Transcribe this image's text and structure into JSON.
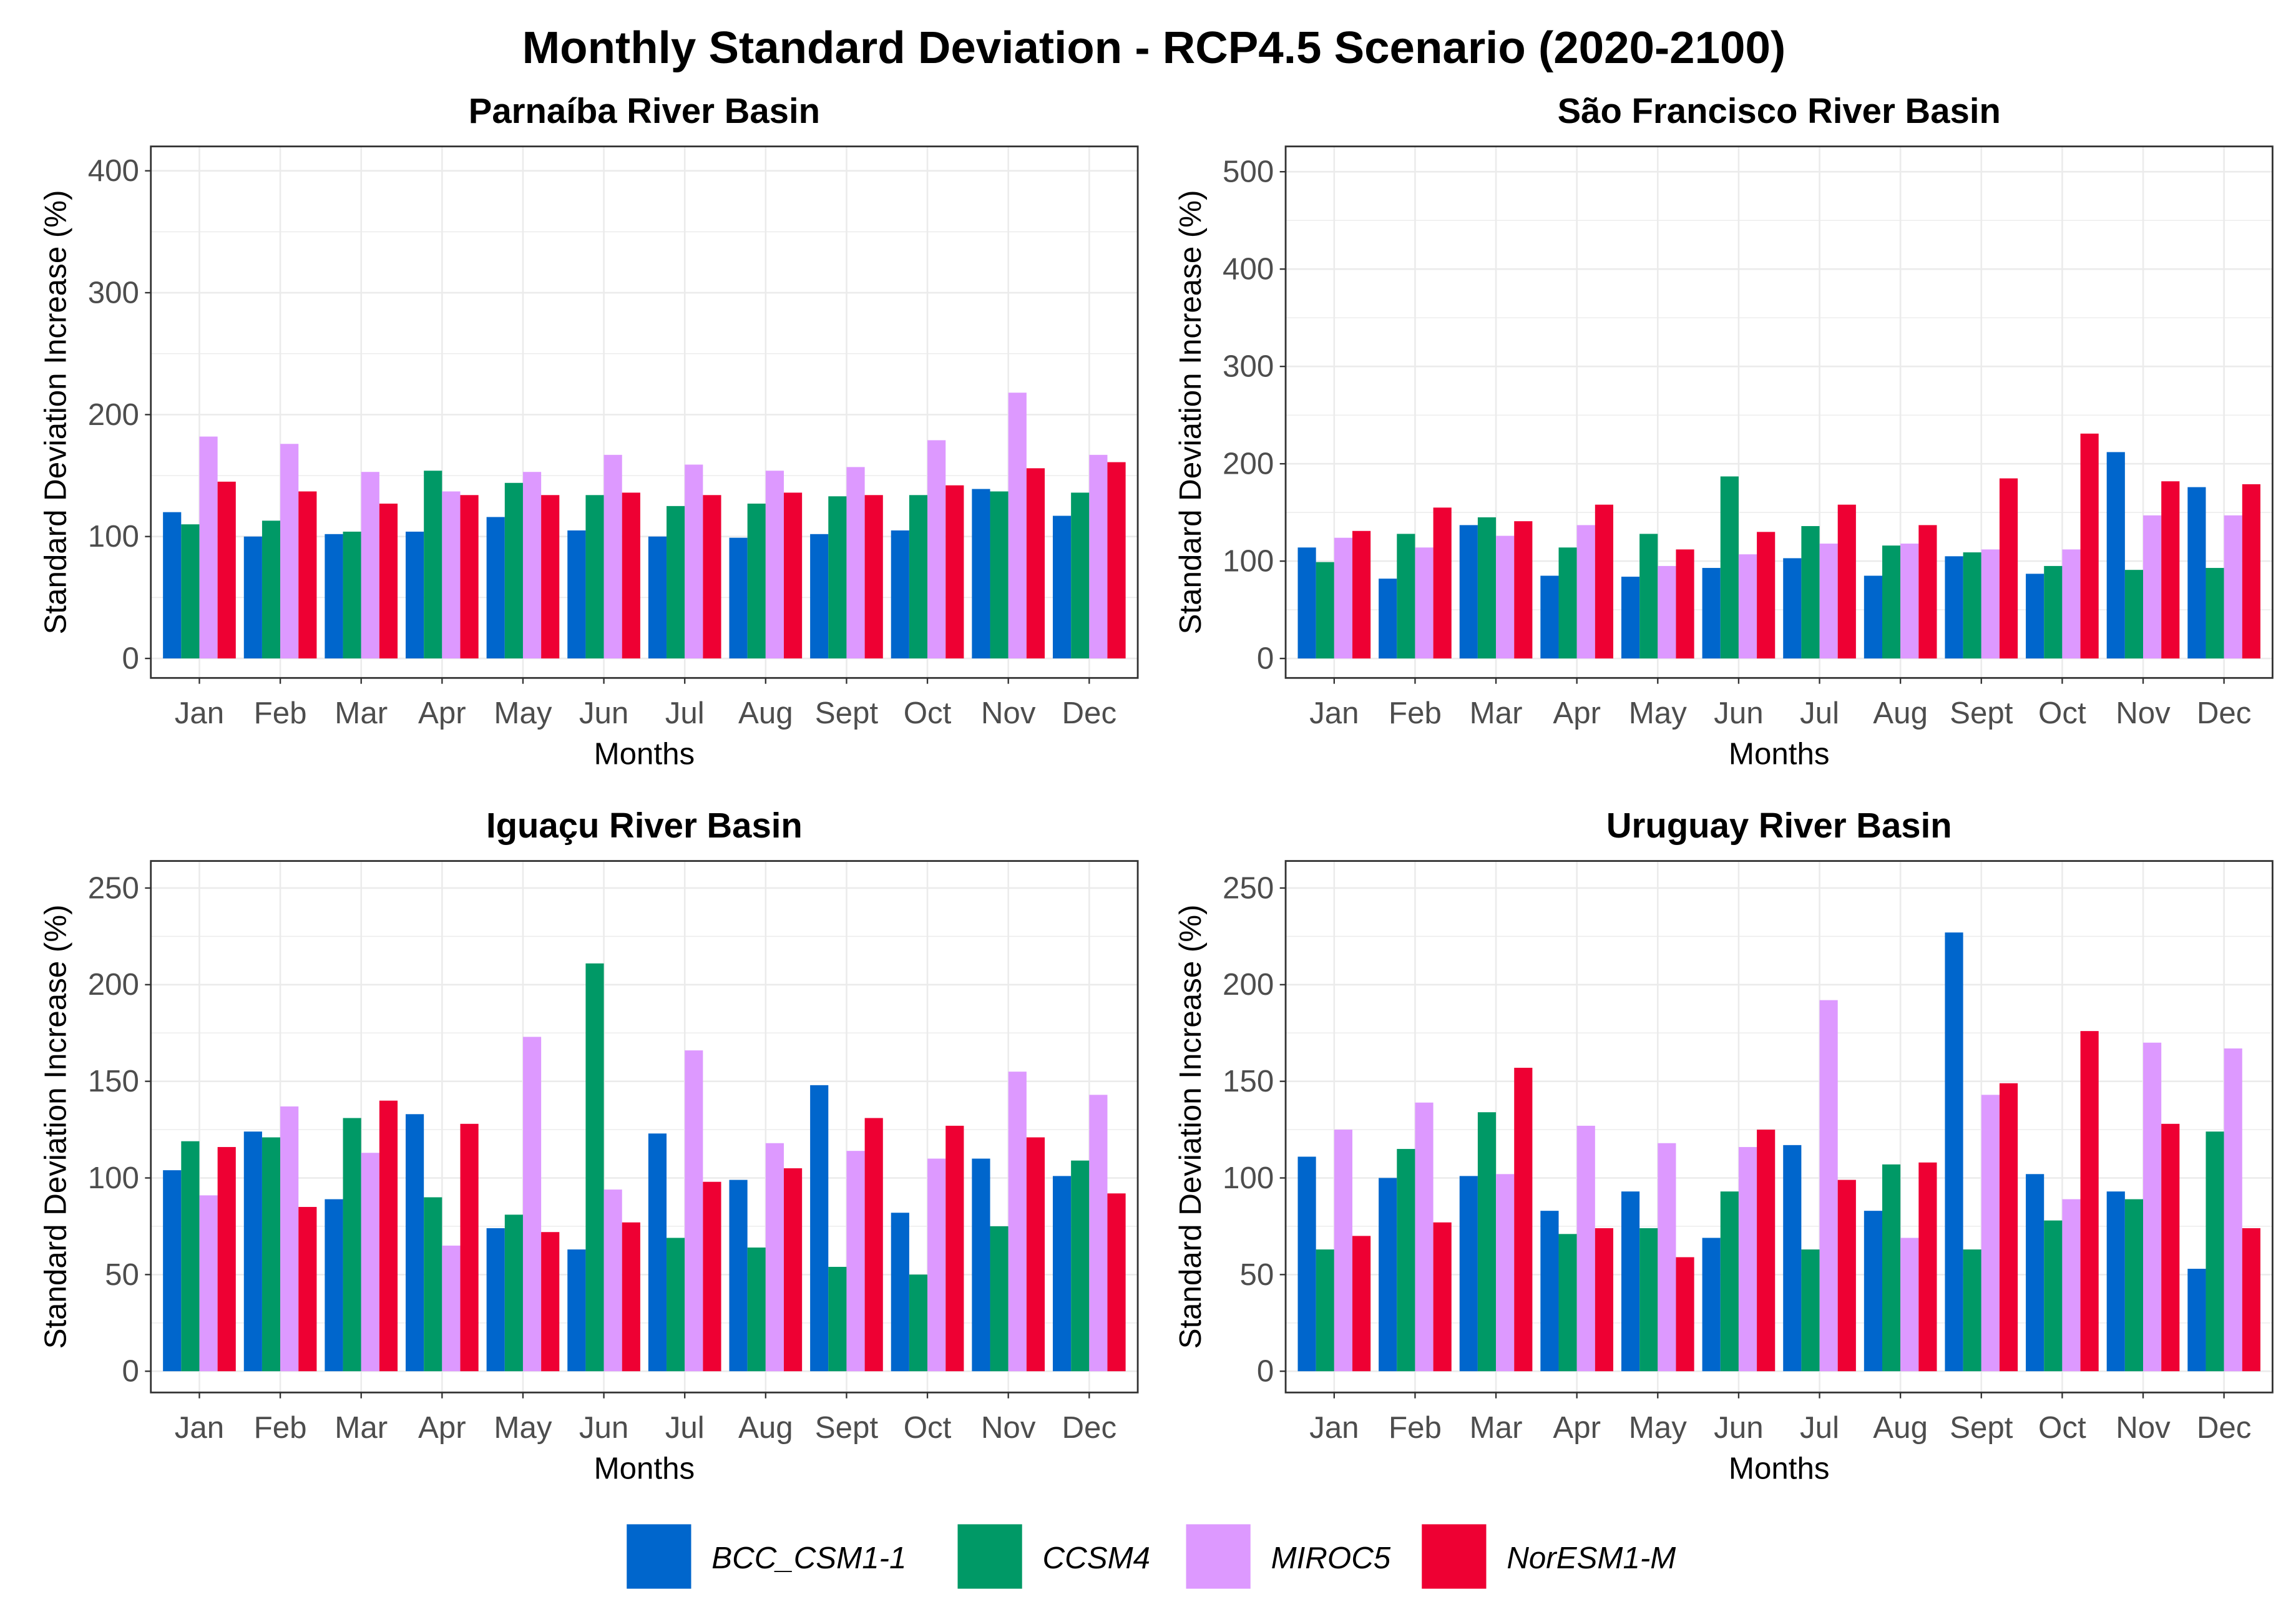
{
  "title": "Monthly Standard Deviation - RCP4.5 Scenario (2020-2100)",
  "legend": {
    "placement": "bottom",
    "entries": [
      {
        "name": "BCC_CSM1-1",
        "color": "#0066cc"
      },
      {
        "name": "CCSM4",
        "color": "#009966"
      },
      {
        "name": "MIROC5",
        "color": "#dd99ff"
      },
      {
        "name": "NorESM1-M",
        "color": "#ee0033"
      }
    ]
  },
  "chart_data": [
    {
      "type": "bar",
      "title": "Parnaíba River Basin",
      "xlabel": "Months",
      "ylabel": "Standard Deviation Increase (%)",
      "categories": [
        "Jan",
        "Feb",
        "Mar",
        "Apr",
        "May",
        "Jun",
        "Jul",
        "Aug",
        "Sept",
        "Oct",
        "Nov",
        "Dec"
      ],
      "ylim": [
        -16,
        420
      ],
      "yticks": [
        "0",
        "100",
        "200",
        "300",
        "400"
      ],
      "grid": true,
      "series": [
        {
          "name": "BCC_CSM1-1",
          "values": [
            120,
            100,
            102,
            104,
            116,
            105,
            100,
            99,
            102,
            105,
            139,
            117
          ]
        },
        {
          "name": "CCSM4",
          "values": [
            110,
            113,
            104,
            154,
            144,
            134,
            125,
            127,
            133,
            134,
            137,
            136
          ]
        },
        {
          "name": "MIROC5",
          "values": [
            182,
            176,
            153,
            137,
            153,
            167,
            159,
            154,
            157,
            179,
            218,
            167
          ]
        },
        {
          "name": "NorESM1-M",
          "values": [
            145,
            137,
            127,
            134,
            134,
            136,
            134,
            136,
            134,
            142,
            156,
            161
          ]
        }
      ]
    },
    {
      "type": "bar",
      "title": "São Francisco River Basin",
      "xlabel": "Months",
      "ylabel": "Standard Deviation Increase (%)",
      "categories": [
        "Jan",
        "Feb",
        "Mar",
        "Apr",
        "May",
        "Jun",
        "Jul",
        "Aug",
        "Sept",
        "Oct",
        "Nov",
        "Dec"
      ],
      "ylim": [
        -20,
        526
      ],
      "yticks": [
        "0",
        "100",
        "200",
        "300",
        "400",
        "500"
      ],
      "grid": true,
      "series": [
        {
          "name": "BCC_CSM1-1",
          "values": [
            114,
            82,
            137,
            85,
            84,
            93,
            103,
            85,
            105,
            87,
            212,
            176
          ]
        },
        {
          "name": "CCSM4",
          "values": [
            99,
            128,
            145,
            114,
            128,
            187,
            136,
            116,
            109,
            95,
            91,
            93
          ]
        },
        {
          "name": "MIROC5",
          "values": [
            124,
            114,
            126,
            137,
            95,
            107,
            118,
            118,
            112,
            112,
            147,
            147
          ]
        },
        {
          "name": "NorESM1-M",
          "values": [
            131,
            155,
            141,
            158,
            112,
            130,
            158,
            137,
            185,
            231,
            182,
            179
          ]
        }
      ]
    },
    {
      "type": "bar",
      "title": "Iguaçu River Basin",
      "xlabel": "Months",
      "ylabel": "Standard Deviation Increase (%)",
      "categories": [
        "Jan",
        "Feb",
        "Mar",
        "Apr",
        "May",
        "Jun",
        "Jul",
        "Aug",
        "Sept",
        "Oct",
        "Nov",
        "Dec"
      ],
      "ylim": [
        -11,
        264
      ],
      "yticks": [
        "0",
        "50",
        "100",
        "150",
        "200",
        "250"
      ],
      "grid": true,
      "series": [
        {
          "name": "BCC_CSM1-1",
          "values": [
            104,
            124,
            89,
            133,
            74,
            63,
            123,
            99,
            148,
            82,
            110,
            101
          ]
        },
        {
          "name": "CCSM4",
          "values": [
            119,
            121,
            131,
            90,
            81,
            211,
            69,
            64,
            54,
            50,
            75,
            109
          ]
        },
        {
          "name": "MIROC5",
          "values": [
            91,
            137,
            113,
            65,
            173,
            94,
            166,
            118,
            114,
            110,
            155,
            143
          ]
        },
        {
          "name": "NorESM1-M",
          "values": [
            116,
            85,
            140,
            128,
            72,
            77,
            98,
            105,
            131,
            127,
            121,
            92
          ]
        }
      ]
    },
    {
      "type": "bar",
      "title": "Uruguay River Basin",
      "xlabel": "Months",
      "ylabel": "Standard Deviation Increase (%)",
      "categories": [
        "Jan",
        "Feb",
        "Mar",
        "Apr",
        "May",
        "Jun",
        "Jul",
        "Aug",
        "Sept",
        "Oct",
        "Nov",
        "Dec"
      ],
      "ylim": [
        -11,
        264
      ],
      "yticks": [
        "0",
        "50",
        "100",
        "150",
        "200",
        "250"
      ],
      "grid": true,
      "series": [
        {
          "name": "BCC_CSM1-1",
          "values": [
            111,
            100,
            101,
            83,
            93,
            69,
            117,
            83,
            227,
            102,
            93,
            53
          ]
        },
        {
          "name": "CCSM4",
          "values": [
            63,
            115,
            134,
            71,
            74,
            93,
            63,
            107,
            63,
            78,
            89,
            124
          ]
        },
        {
          "name": "MIROC5",
          "values": [
            125,
            139,
            102,
            127,
            118,
            116,
            192,
            69,
            143,
            89,
            170,
            167
          ]
        },
        {
          "name": "NorESM1-M",
          "values": [
            70,
            77,
            157,
            74,
            59,
            125,
            99,
            108,
            149,
            176,
            128,
            74
          ]
        }
      ]
    }
  ]
}
